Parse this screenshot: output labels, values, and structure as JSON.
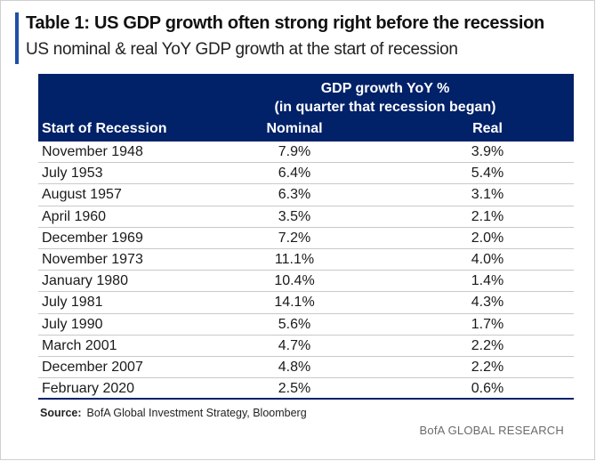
{
  "title": "Table 1: US GDP growth often strong right before the recession",
  "subtitle": "US nominal & real YoY GDP growth at the start of recession",
  "header": {
    "group_line1": "GDP growth YoY %",
    "group_line2": "(in quarter that recession began)",
    "col_start": "Start of Recession",
    "col_nominal": "Nominal",
    "col_real": "Real"
  },
  "rows": [
    {
      "start": "November 1948",
      "nominal": "7.9%",
      "real": "3.9%"
    },
    {
      "start": "July 1953",
      "nominal": "6.4%",
      "real": "5.4%"
    },
    {
      "start": "August 1957",
      "nominal": "6.3%",
      "real": "3.1%"
    },
    {
      "start": "April 1960",
      "nominal": "3.5%",
      "real": "2.1%"
    },
    {
      "start": "December 1969",
      "nominal": "7.2%",
      "real": "2.0%"
    },
    {
      "start": "November 1973",
      "nominal": "11.1%",
      "real": "4.0%"
    },
    {
      "start": "January 1980",
      "nominal": "10.4%",
      "real": "1.4%"
    },
    {
      "start": "July 1981",
      "nominal": "14.1%",
      "real": "4.3%"
    },
    {
      "start": "July 1990",
      "nominal": "5.6%",
      "real": "1.7%"
    },
    {
      "start": "March 2001",
      "nominal": "4.7%",
      "real": "2.2%"
    },
    {
      "start": "December 2007",
      "nominal": "4.8%",
      "real": "2.2%"
    },
    {
      "start": "February 2020",
      "nominal": "2.5%",
      "real": "0.6%"
    }
  ],
  "source": {
    "label": "Source:",
    "text": "BofA Global Investment Strategy, Bloomberg"
  },
  "brand": "BofA GLOBAL RESEARCH",
  "colors": {
    "header_bg": "#012169",
    "accent": "#1f4fa8"
  }
}
